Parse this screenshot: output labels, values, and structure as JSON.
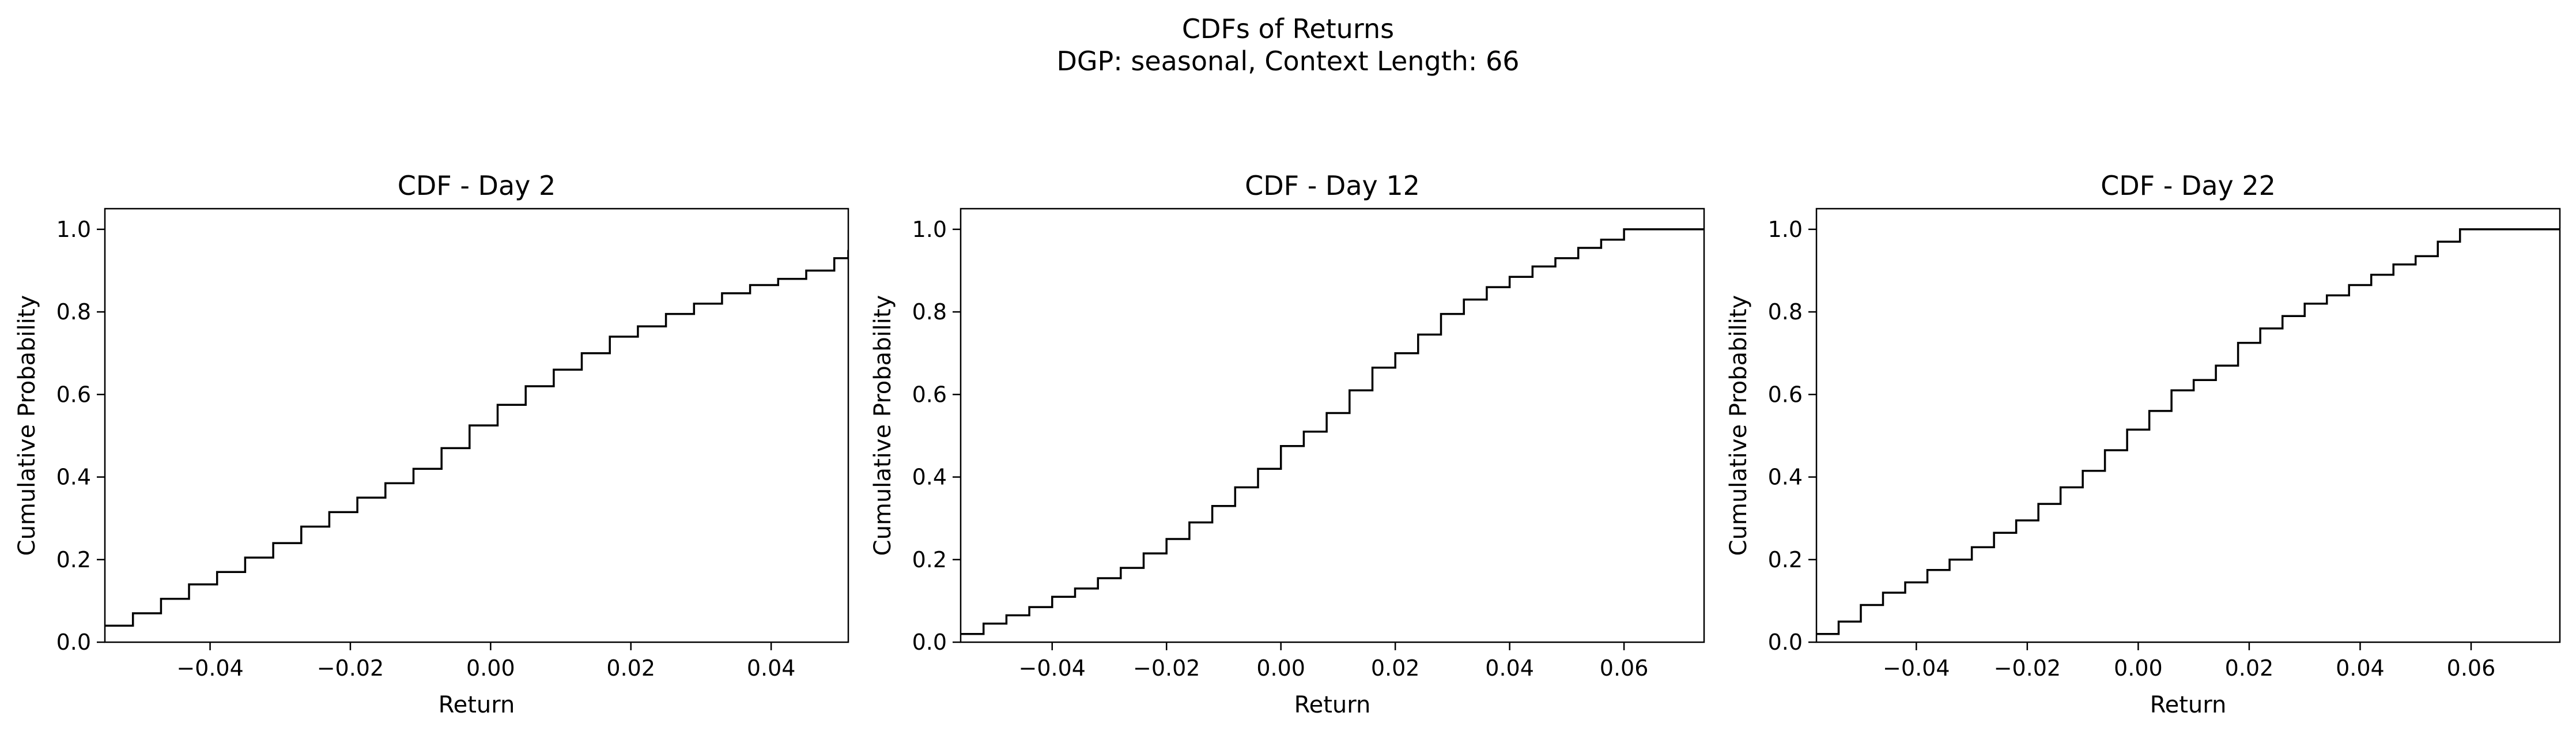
{
  "figure": {
    "title_line1": "CDFs of Returns",
    "title_line2": "DGP: seasonal, Context Length: 66"
  },
  "colors": {
    "line": "#000000",
    "axes": "#000000",
    "background": "#ffffff"
  },
  "chart_data": [
    {
      "type": "line",
      "drawstyle": "step",
      "title": "CDF - Day 2",
      "xlabel": "Return",
      "ylabel": "Cumulative Probability",
      "xlim": [
        -0.055,
        0.051
      ],
      "ylim": [
        0.0,
        1.05
      ],
      "xticks": [
        -0.04,
        -0.02,
        0.0,
        0.02,
        0.04
      ],
      "xtick_labels": [
        "−0.04",
        "−0.02",
        "0.00",
        "0.02",
        "0.04"
      ],
      "yticks": [
        0.0,
        0.2,
        0.4,
        0.6,
        0.8,
        1.0
      ],
      "ytick_labels": [
        "0.0",
        "0.2",
        "0.4",
        "0.6",
        "0.8",
        "1.0"
      ],
      "grid": false,
      "x": [
        -0.055,
        -0.051,
        -0.047,
        -0.043,
        -0.039,
        -0.035,
        -0.031,
        -0.027,
        -0.023,
        -0.019,
        -0.015,
        -0.011,
        -0.007,
        -0.003,
        0.001,
        0.005,
        0.009,
        0.013,
        0.017,
        0.021,
        0.025,
        0.029,
        0.033,
        0.037,
        0.041,
        0.045,
        0.049,
        0.051
      ],
      "y": [
        0.04,
        0.07,
        0.105,
        0.14,
        0.17,
        0.205,
        0.24,
        0.28,
        0.315,
        0.35,
        0.385,
        0.42,
        0.47,
        0.525,
        0.575,
        0.62,
        0.66,
        0.7,
        0.74,
        0.765,
        0.795,
        0.82,
        0.845,
        0.865,
        0.88,
        0.9,
        0.93,
        0.95
      ]
    },
    {
      "type": "line",
      "drawstyle": "step",
      "title": "CDF - Day 12",
      "xlabel": "Return",
      "ylabel": "Cumulative Probability",
      "xlim": [
        -0.056,
        0.074
      ],
      "ylim": [
        0.0,
        1.05
      ],
      "xticks": [
        -0.04,
        -0.02,
        0.0,
        0.02,
        0.04,
        0.06
      ],
      "xtick_labels": [
        "−0.04",
        "−0.02",
        "0.00",
        "0.02",
        "0.04",
        "0.06"
      ],
      "yticks": [
        0.0,
        0.2,
        0.4,
        0.6,
        0.8,
        1.0
      ],
      "ytick_labels": [
        "0.0",
        "0.2",
        "0.4",
        "0.6",
        "0.8",
        "1.0"
      ],
      "grid": false,
      "x": [
        -0.056,
        -0.052,
        -0.048,
        -0.044,
        -0.04,
        -0.036,
        -0.032,
        -0.028,
        -0.024,
        -0.02,
        -0.016,
        -0.012,
        -0.008,
        -0.004,
        0.0,
        0.004,
        0.008,
        0.012,
        0.016,
        0.02,
        0.024,
        0.028,
        0.032,
        0.036,
        0.04,
        0.044,
        0.048,
        0.052,
        0.056,
        0.06,
        0.064,
        0.068,
        0.072
      ],
      "y": [
        0.02,
        0.045,
        0.065,
        0.085,
        0.11,
        0.13,
        0.155,
        0.18,
        0.215,
        0.25,
        0.29,
        0.33,
        0.375,
        0.42,
        0.475,
        0.51,
        0.555,
        0.61,
        0.665,
        0.7,
        0.745,
        0.795,
        0.83,
        0.86,
        0.885,
        0.91,
        0.93,
        0.955,
        0.975,
        1.0,
        1.0,
        1.0,
        1.0
      ]
    },
    {
      "type": "line",
      "drawstyle": "step",
      "title": "CDF - Day 22",
      "xlabel": "Return",
      "ylabel": "Cumulative Probability",
      "xlim": [
        -0.058,
        0.076
      ],
      "ylim": [
        0.0,
        1.05
      ],
      "xticks": [
        -0.04,
        -0.02,
        0.0,
        0.02,
        0.04,
        0.06
      ],
      "xtick_labels": [
        "−0.04",
        "−0.02",
        "0.00",
        "0.02",
        "0.04",
        "0.06"
      ],
      "yticks": [
        0.0,
        0.2,
        0.4,
        0.6,
        0.8,
        1.0
      ],
      "ytick_labels": [
        "0.0",
        "0.2",
        "0.4",
        "0.6",
        "0.8",
        "1.0"
      ],
      "grid": false,
      "x": [
        -0.058,
        -0.054,
        -0.05,
        -0.046,
        -0.042,
        -0.038,
        -0.034,
        -0.03,
        -0.026,
        -0.022,
        -0.018,
        -0.014,
        -0.01,
        -0.006,
        -0.002,
        0.002,
        0.006,
        0.01,
        0.014,
        0.018,
        0.022,
        0.026,
        0.03,
        0.034,
        0.038,
        0.042,
        0.046,
        0.05,
        0.054,
        0.058,
        0.062,
        0.066,
        0.07,
        0.074
      ],
      "y": [
        0.02,
        0.05,
        0.09,
        0.12,
        0.145,
        0.175,
        0.2,
        0.23,
        0.265,
        0.295,
        0.335,
        0.375,
        0.415,
        0.465,
        0.515,
        0.56,
        0.61,
        0.635,
        0.67,
        0.725,
        0.76,
        0.79,
        0.82,
        0.84,
        0.865,
        0.89,
        0.915,
        0.935,
        0.97,
        1.0,
        1.0,
        1.0,
        1.0,
        1.0
      ]
    }
  ]
}
